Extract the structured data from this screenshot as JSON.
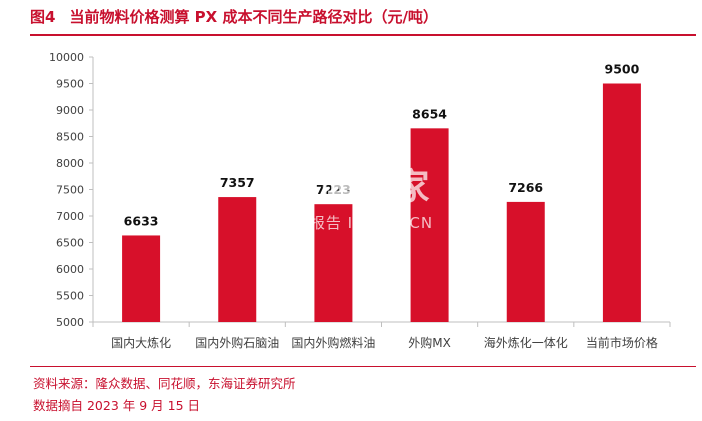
{
  "figure": {
    "label": "图4",
    "title": "当前物料价格测算 PX 成本不同生产路径对比（元/吨）"
  },
  "chart_data": {
    "type": "bar",
    "categories": [
      "国内大炼化",
      "国内外购石脑油",
      "国内外购燃料油",
      "外购MX",
      "海外炼化一体化",
      "当前市场价格"
    ],
    "values": [
      6633,
      7357,
      7223,
      8654,
      7266,
      9500
    ],
    "value_labels": [
      "6633",
      "7357",
      "7223",
      "8654",
      "7266",
      "9500"
    ],
    "ylim": [
      5000,
      10000
    ],
    "yticks": [
      5000,
      5500,
      6000,
      6500,
      7000,
      7500,
      8000,
      8500,
      9000,
      9500,
      10000
    ],
    "bar_color": "#d7102a",
    "grid": false,
    "legend": "none"
  },
  "source": {
    "text": "资料来源：隆众数据、同花顺，东海证券研究所",
    "date": "数据摘自 2023 年 9 月 15 日"
  },
  "watermark": {
    "main": "慧博购家",
    "sub": "行业报告 IPOIPO.CN"
  },
  "colors": {
    "accent": "#c8102e",
    "bar": "#d7102a"
  }
}
